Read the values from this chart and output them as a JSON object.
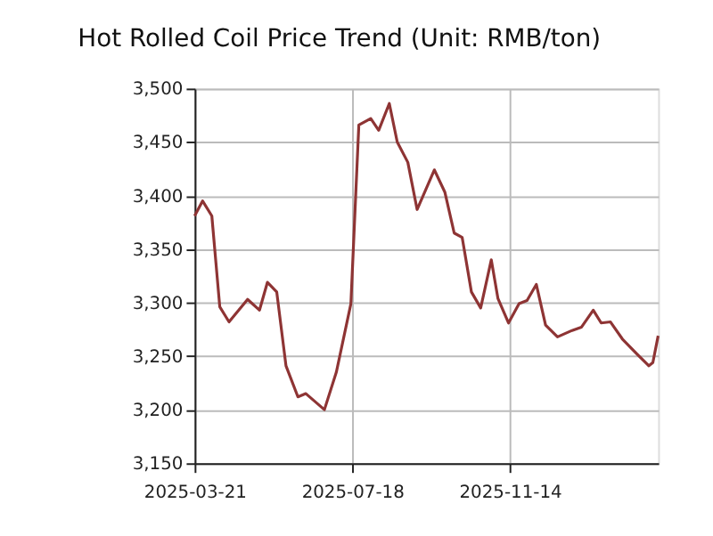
{
  "chart_data": {
    "type": "line",
    "title": "Hot Rolled Coil Price Trend (Unit: RMB/ton)",
    "x": [
      "2025-03-21",
      "2025-03-27",
      "2025-04-03",
      "2025-04-09",
      "2025-04-16",
      "2025-04-30",
      "2025-05-09",
      "2025-05-15",
      "2025-05-22",
      "2025-05-29",
      "2025-06-07",
      "2025-06-13",
      "2025-06-27",
      "2025-07-06",
      "2025-07-17",
      "2025-07-23",
      "2025-08-01",
      "2025-08-07",
      "2025-08-15",
      "2025-08-21",
      "2025-08-29",
      "2025-09-05",
      "2025-09-18",
      "2025-09-26",
      "2025-10-03",
      "2025-10-09",
      "2025-10-16",
      "2025-10-23",
      "2025-10-31",
      "2025-11-05",
      "2025-11-13",
      "2025-11-21",
      "2025-11-27",
      "2025-12-04",
      "2025-12-11",
      "2025-12-20",
      "2025-12-31",
      "2026-01-07",
      "2026-01-16",
      "2026-01-22",
      "2026-01-29",
      "2026-02-07",
      "2026-02-18",
      "2026-02-27",
      "2026-03-02",
      "2026-03-06"
    ],
    "series": [
      {
        "color": "#8e3434",
        "values": [
          3381,
          3395,
          3381,
          3296,
          3282,
          3303,
          3293,
          3319,
          3310,
          3241,
          3212,
          3215,
          3200,
          3235,
          3299,
          3466,
          3472,
          3461,
          3486,
          3450,
          3431,
          3387,
          3424,
          3403,
          3365,
          3361,
          3310,
          3295,
          3340,
          3304,
          3281,
          3299,
          3302,
          3317,
          3279,
          3268,
          3274,
          3277,
          3293,
          3281,
          3282,
          3266,
          3252,
          3241,
          3244,
          3269
        ]
      }
    ],
    "xlim": [
      "2025-03-21",
      "2026-03-06"
    ],
    "xticks": [
      "2025-03-21",
      "2025-07-18",
      "2025-11-14"
    ],
    "ylim": [
      3150,
      3500
    ],
    "yticks": [
      {
        "value": 3150,
        "label": "3,150"
      },
      {
        "value": 3200,
        "label": "3,200"
      },
      {
        "value": 3250,
        "label": "3,250"
      },
      {
        "value": 3300,
        "label": "3,300"
      },
      {
        "value": 3350,
        "label": "3,350"
      },
      {
        "value": 3400,
        "label": "3,400"
      },
      {
        "value": 3450,
        "label": "3,450"
      },
      {
        "value": 3500,
        "label": "3,500"
      }
    ],
    "grid": true,
    "legend": false,
    "marker": "none",
    "line_style": "solid"
  }
}
